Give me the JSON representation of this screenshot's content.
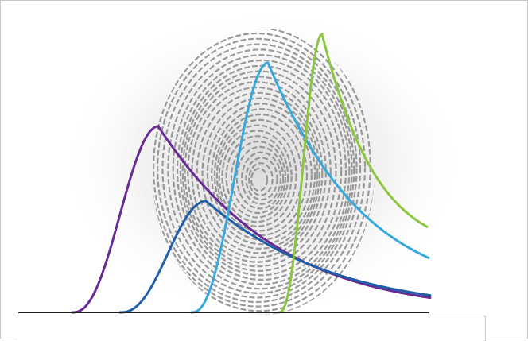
{
  "illustration": {
    "subject": "fingerprint",
    "fingerprint_color": "#8f8f8f",
    "shadow_color": "#d9d9d9"
  },
  "curves": [
    {
      "color": "#6a2a96"
    },
    {
      "color": "#1f5fa8"
    },
    {
      "color": "#35a9dd"
    },
    {
      "color": "#8cc63f"
    }
  ],
  "baseline_color": "#1a1a1a"
}
